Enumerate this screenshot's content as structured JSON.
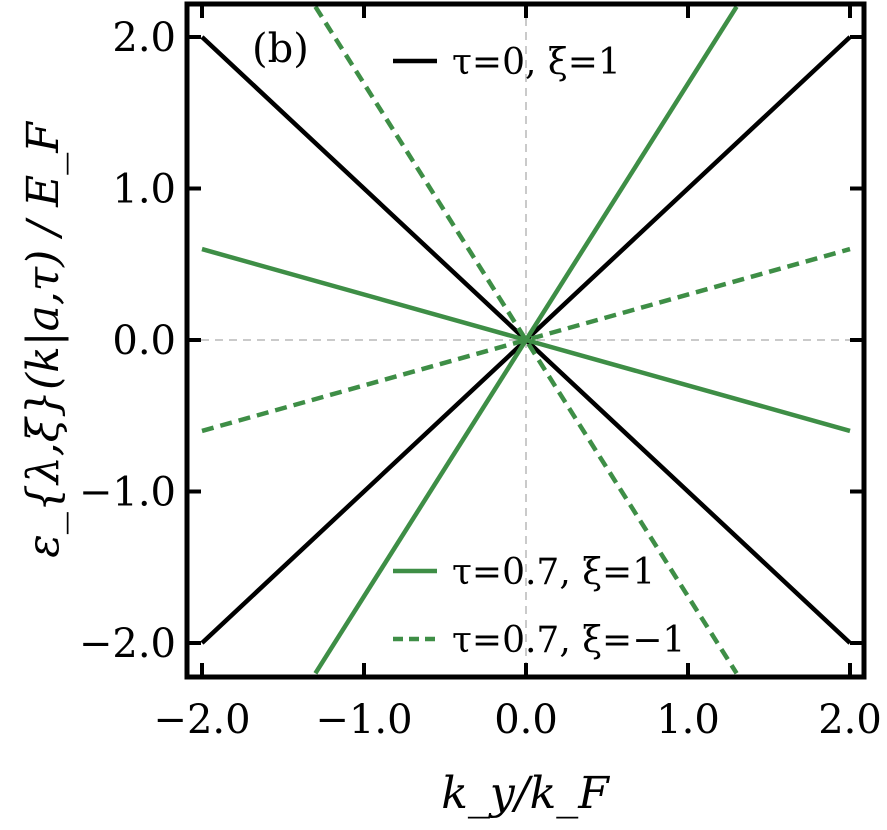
{
  "chart_data": {
    "type": "line",
    "panel_label": "(b)",
    "xlabel": "k_y/k_F",
    "ylabel": "ε_{λ,ξ}(k|a,τ) / E_F",
    "xlim": [
      -2.0,
      2.0
    ],
    "ylim": [
      -2.2,
      2.2
    ],
    "xticks": [
      "−2.0",
      "−1.0",
      "0.0",
      "1.0",
      "2.0"
    ],
    "yticks": [
      "2.0",
      "1.0",
      "0.0",
      "−1.0",
      "−2.0"
    ],
    "grid": false,
    "zero_lines": true,
    "legend": [
      {
        "label": "τ=0, ξ=1",
        "style": "solid",
        "color": "#000000"
      },
      {
        "label": "τ=0.7, ξ=1",
        "style": "solid",
        "color": "#3e8e46"
      },
      {
        "label": "τ=0.7, ξ=−1",
        "style": "dashed",
        "color": "#3e8e46"
      }
    ],
    "series": [
      {
        "name": "τ=0, ξ=1",
        "band": "upper",
        "style": "solid",
        "color": "#000000",
        "x": [
          -2.0,
          2.0
        ],
        "y": [
          2.0,
          2.0
        ],
        "shape": "abs"
      },
      {
        "name": "τ=0, ξ=1",
        "band": "lower",
        "style": "solid",
        "color": "#000000",
        "x": [
          -2.0,
          2.0
        ],
        "y": [
          -2.0,
          -2.0
        ],
        "shape": "abs"
      },
      {
        "name": "τ=0.7, ξ=1",
        "band": "a",
        "style": "solid",
        "color": "#3e8e46",
        "x": [
          -1.3,
          1.3
        ],
        "y": [
          -2.2,
          2.2
        ]
      },
      {
        "name": "τ=0.7, ξ=1",
        "band": "b",
        "style": "solid",
        "color": "#3e8e46",
        "x": [
          -2.0,
          2.0
        ],
        "y": [
          0.6,
          -0.6
        ]
      },
      {
        "name": "τ=0.7, ξ=−1",
        "band": "a",
        "style": "dashed",
        "color": "#3e8e46",
        "x": [
          -1.3,
          1.3
        ],
        "y": [
          2.2,
          -2.2
        ]
      },
      {
        "name": "τ=0.7, ξ=−1",
        "band": "b",
        "style": "dashed",
        "color": "#3e8e46",
        "x": [
          -2.0,
          2.0
        ],
        "y": [
          -0.6,
          0.6
        ]
      }
    ]
  }
}
